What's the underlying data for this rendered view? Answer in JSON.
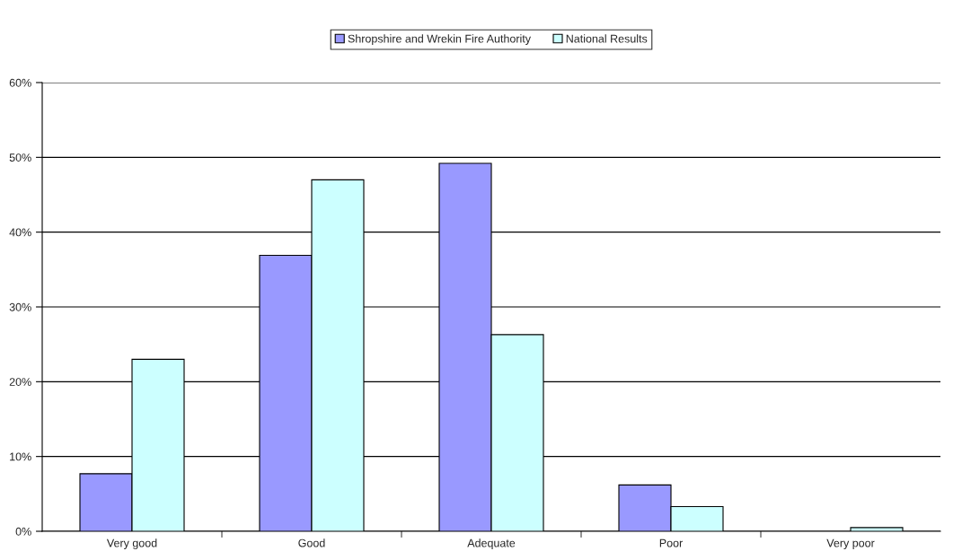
{
  "chart_data": {
    "type": "bar",
    "categories": [
      "Very good",
      "Good",
      "Adequate",
      "Poor",
      "Very poor"
    ],
    "series": [
      {
        "name": "Shropshire and Wrekin Fire Authority",
        "color": "#9999ff",
        "values": [
          7.7,
          36.9,
          49.2,
          6.2,
          0
        ]
      },
      {
        "name": "National Results",
        "color": "#ccffff",
        "values": [
          23.0,
          47.0,
          26.3,
          3.3,
          0.5
        ]
      }
    ],
    "ylim": [
      0,
      60
    ],
    "yticks": [
      {
        "value": 0,
        "label": "0%"
      },
      {
        "value": 10,
        "label": "10%"
      },
      {
        "value": 20,
        "label": "20%"
      },
      {
        "value": 30,
        "label": "30%"
      },
      {
        "value": 40,
        "label": "40%"
      },
      {
        "value": 50,
        "label": "50%"
      },
      {
        "value": 60,
        "label": "60%"
      }
    ],
    "grid": "y",
    "legend": "top"
  }
}
